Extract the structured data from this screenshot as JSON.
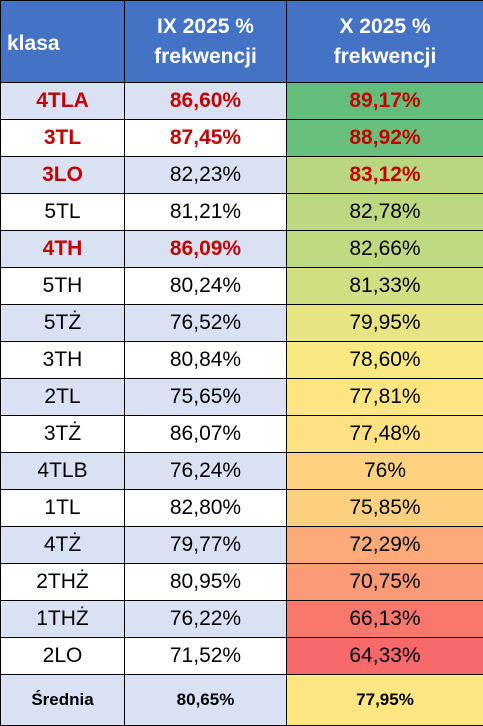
{
  "header": {
    "col1": "klasa",
    "col2_line1": "IX 2025 %",
    "col2_line2": "frekwencji",
    "col3_line1": "X 2025 %",
    "col3_line2": "frekwencji"
  },
  "rows": [
    {
      "klasa": "4TLA",
      "ix": "86,60%",
      "x": "89,17%",
      "x_color": "#63be7b"
    },
    {
      "klasa": "3TL",
      "ix": "87,45%",
      "x": "88,92%",
      "x_color": "#68c07c"
    },
    {
      "klasa": "3LO",
      "ix": "82,23%",
      "x": "83,12%",
      "x_color": "#b9d780"
    },
    {
      "klasa": "5TL",
      "ix": "81,21%",
      "x": "82,78%",
      "x_color": "#bdd881"
    },
    {
      "klasa": "4TH",
      "ix": "86,09%",
      "x": "82,66%",
      "x_color": "#bfd981"
    },
    {
      "klasa": "5TH",
      "ix": "80,24%",
      "x": "81,33%",
      "x_color": "#d2de82"
    },
    {
      "klasa": "5TŻ",
      "ix": "76,52%",
      "x": "79,95%",
      "x_color": "#e6e483"
    },
    {
      "klasa": "3TH",
      "ix": "80,84%",
      "x": "78,60%",
      "x_color": "#f9e983"
    },
    {
      "klasa": "2TL",
      "ix": "75,65%",
      "x": "77,81%",
      "x_color": "#fee582"
    },
    {
      "klasa": "3TŻ",
      "ix": "86,07%",
      "x": "77,48%",
      "x_color": "#fee182"
    },
    {
      "klasa": "4TLB",
      "ix": "76,24%",
      "x": "76%",
      "x_color": "#fed280"
    },
    {
      "klasa": "1TL",
      "ix": "82,80%",
      "x": "75,85%",
      "x_color": "#fdd07f"
    },
    {
      "klasa": "4TŻ",
      "ix": "79,77%",
      "x": "72,29%",
      "x_color": "#fcab78"
    },
    {
      "klasa": "2THŻ",
      "ix": "80,95%",
      "x": "70,75%",
      "x_color": "#fb9a76"
    },
    {
      "klasa": "1THŻ",
      "ix": "76,22%",
      "x": "66,13%",
      "x_color": "#f9786e"
    },
    {
      "klasa": "2LO",
      "ix": "71,52%",
      "x": "64,33%",
      "x_color": "#f8696b"
    }
  ],
  "footer": {
    "klasa": "Średnia",
    "ix": "80,65%",
    "x": "77,95%",
    "x_color": "#fee683"
  }
}
